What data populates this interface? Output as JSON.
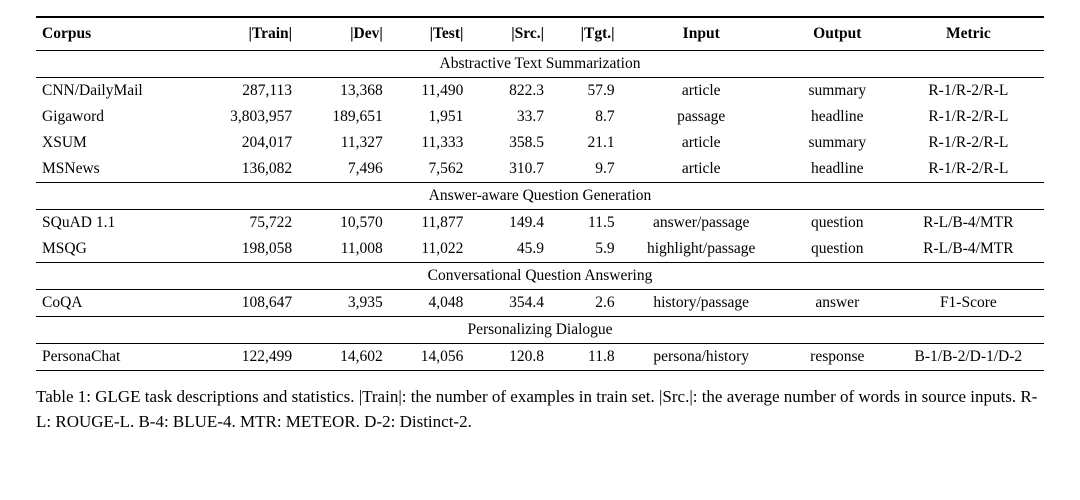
{
  "table": {
    "columns": [
      {
        "label": "Corpus",
        "align": "left",
        "key": "corpus"
      },
      {
        "label": "|Train|",
        "align": "right",
        "key": "train"
      },
      {
        "label": "|Dev|",
        "align": "right",
        "key": "dev"
      },
      {
        "label": "|Test|",
        "align": "right",
        "key": "test"
      },
      {
        "label": "|Src.|",
        "align": "right",
        "key": "src"
      },
      {
        "label": "|Tgt.|",
        "align": "right",
        "key": "tgt"
      },
      {
        "label": "Input",
        "align": "center",
        "key": "input"
      },
      {
        "label": "Output",
        "align": "center",
        "key": "output"
      },
      {
        "label": "Metric",
        "align": "center",
        "key": "metric"
      }
    ],
    "sections": [
      {
        "title": "Abstractive Text Summarization",
        "rows": [
          [
            "CNN/DailyMail",
            "287,113",
            "13,368",
            "11,490",
            "822.3",
            "57.9",
            "article",
            "summary",
            "R-1/R-2/R-L"
          ],
          [
            "Gigaword",
            "3,803,957",
            "189,651",
            "1,951",
            "33.7",
            "8.7",
            "passage",
            "headline",
            "R-1/R-2/R-L"
          ],
          [
            "XSUM",
            "204,017",
            "11,327",
            "11,333",
            "358.5",
            "21.1",
            "article",
            "summary",
            "R-1/R-2/R-L"
          ],
          [
            "MSNews",
            "136,082",
            "7,496",
            "7,562",
            "310.7",
            "9.7",
            "article",
            "headline",
            "R-1/R-2/R-L"
          ]
        ]
      },
      {
        "title": "Answer-aware Question Generation",
        "rows": [
          [
            "SQuAD 1.1",
            "75,722",
            "10,570",
            "11,877",
            "149.4",
            "11.5",
            "answer/passage",
            "question",
            "R-L/B-4/MTR"
          ],
          [
            "MSQG",
            "198,058",
            "11,008",
            "11,022",
            "45.9",
            "5.9",
            "highlight/passage",
            "question",
            "R-L/B-4/MTR"
          ]
        ]
      },
      {
        "title": "Conversational Question Answering",
        "rows": [
          [
            "CoQA",
            "108,647",
            "3,935",
            "4,048",
            "354.4",
            "2.6",
            "history/passage",
            "answer",
            "F1-Score"
          ]
        ]
      },
      {
        "title": "Personalizing Dialogue",
        "rows": [
          [
            "PersonaChat",
            "122,499",
            "14,602",
            "14,056",
            "120.8",
            "11.8",
            "persona/history",
            "response",
            "B-1/B-2/D-1/D-2"
          ]
        ]
      }
    ],
    "caption": "Table 1: GLGE task descriptions and statistics. |Train|: the number of examples in train set. |Src.|: the average number of words in source inputs. R-L: ROUGE-L. B-4: BLUE-4. MTR: METEOR. D-2: Distinct-2."
  }
}
